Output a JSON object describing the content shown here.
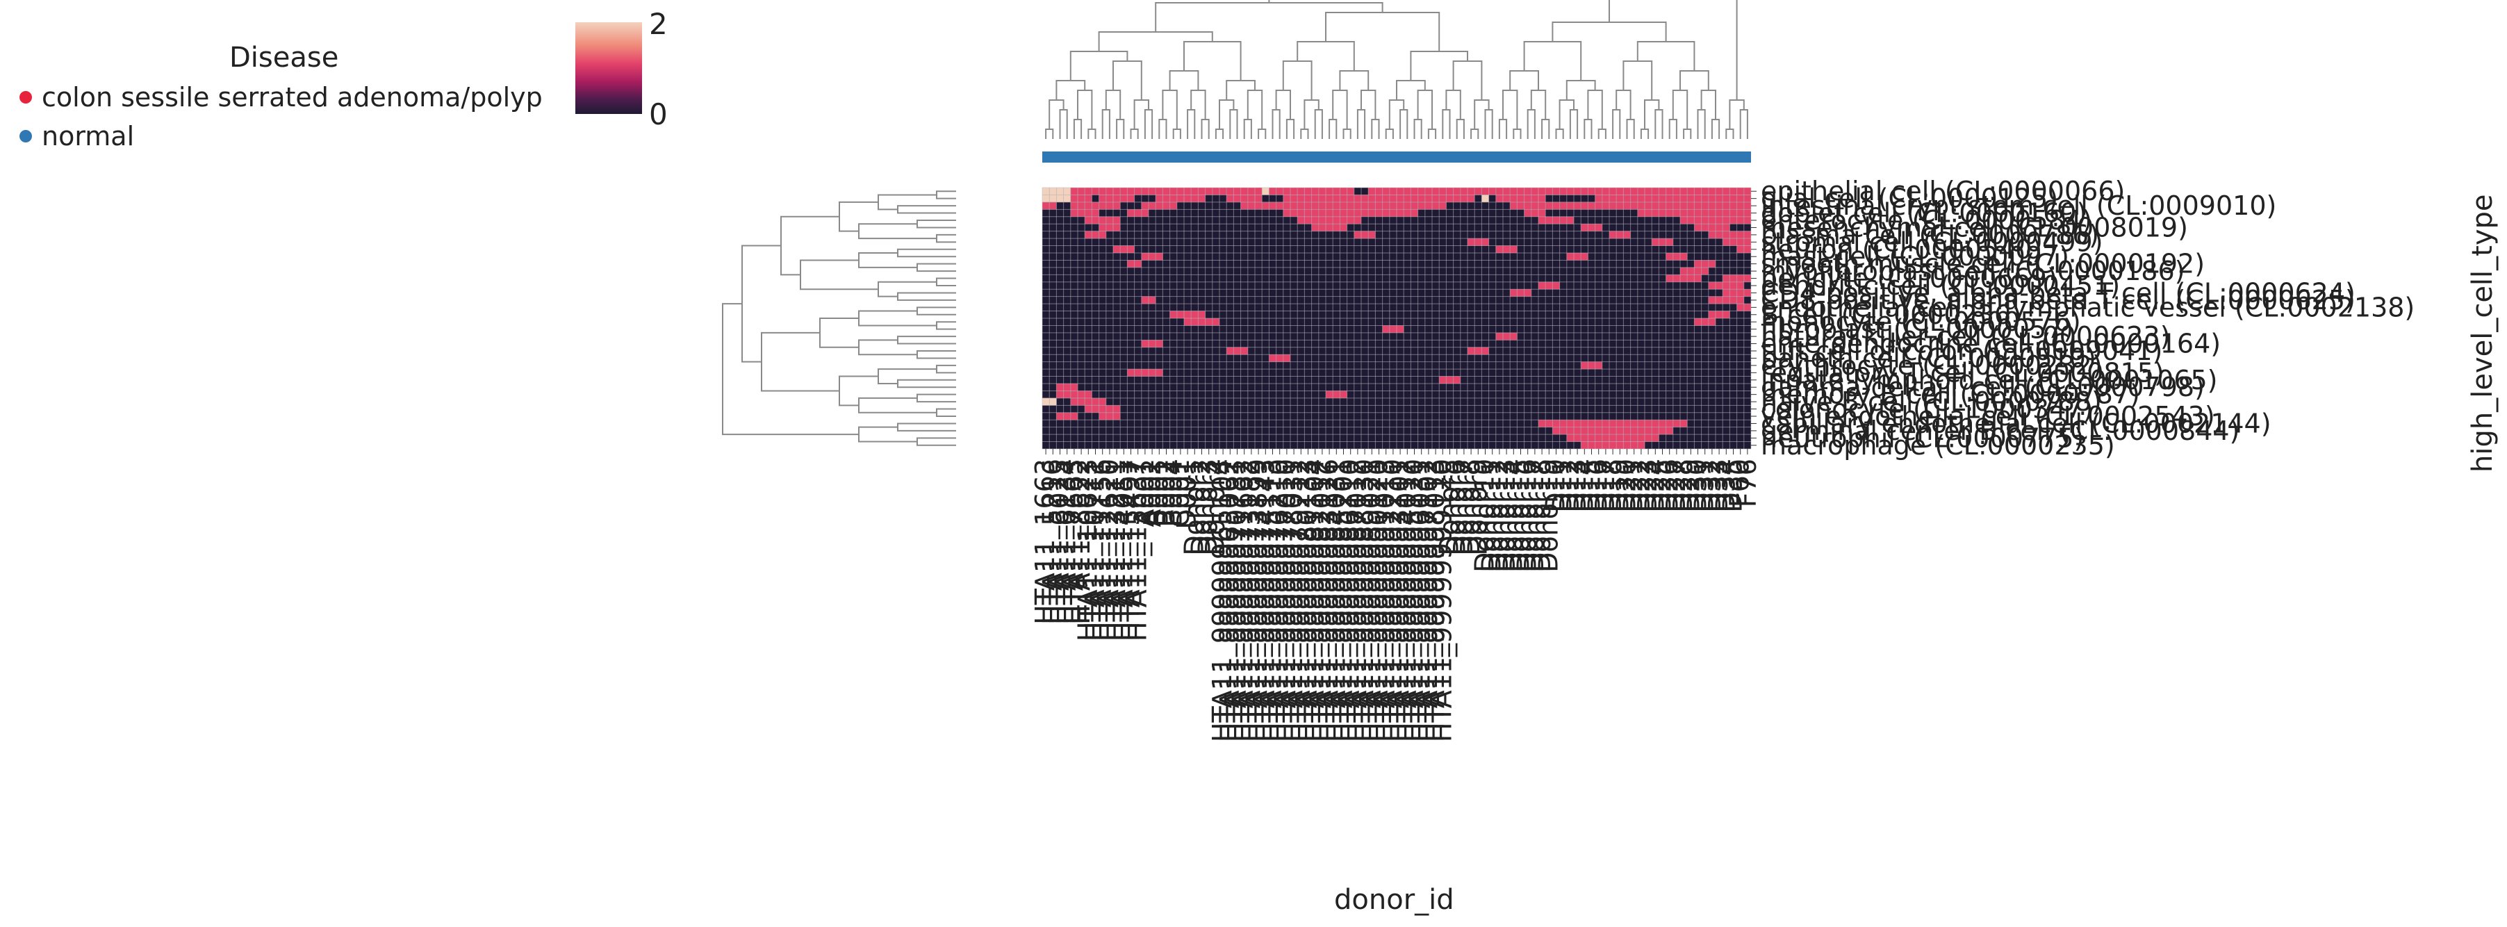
{
  "legend": {
    "title": "Disease",
    "items": [
      {
        "label": "colon sessile serrated adenoma/polyp",
        "color": "#e8243c"
      },
      {
        "label": "normal",
        "color": "#2f78b4"
      }
    ]
  },
  "colorbar": {
    "min_label": "0",
    "max_label": "2",
    "min": 0,
    "max": 2
  },
  "colors": {
    "low": "#1f1a33",
    "mid": "#e4436a",
    "high": "#f3d2bd",
    "grid": "#b9b9c3",
    "annotation_bar": "#2f78b4",
    "dendrogram": "#8a8a8a"
  },
  "chart_data": {
    "type": "heatmap",
    "title": "",
    "xlabel": "donor_id",
    "ylabel": "high_level_cell_type",
    "value_range": [
      0,
      2
    ],
    "column_annotation": "normal",
    "rows": [
      "epithelial cell (CL:0000066)",
      "glial cell (CL:0000125)",
      "intestinal crypt stem cell (CL:0009010)",
      "goblet cell (CL:0000160)",
      "enterocyte (CL:0000584)",
      "mesenchymal cell (CL:0008019)",
      "plasma cell (CL:0000786)",
      "stromal cell (CL:0000499)",
      "neuron (CL:0000540)",
      "mast cell (CL:0000097)",
      "smooth muscle cell (CL:0000192)",
      "myofibroblast cell (CL:0000186)",
      "pericyte (CL:0000669)",
      "dendritic cell (CL:0000451)",
      "CD4-positive, alpha-beta T cell (CL:0000624)",
      "CD8-positive, alpha-beta T cell (CL:0000625)",
      "endothelial cell of lymphatic vessel (CL:0002138)",
      "B cell (CL:0000236)",
      "monocyte (CL:0000576)",
      "fibroblast (CL:0000057)",
      "natural killer cell (CL:0000623)",
      "enteroendocrine cell (CL:0000164)",
      "tuft cell of colon (CL:0009041)",
      "paneth cell (CL:0000510)",
      "erythrocyte (CL:0000232)",
      "regulatory T cell (CL:0000815)",
      "innate lymphoid cell (CL:0001065)",
      "gamma-delta T cell (CL:0000798)",
      "memory B cell (CL:0000787)",
      "naive B cell (CL:0000788)",
      "colonocyte (CL:1000347)",
      "vein endothelial cell (CL:0002543)",
      "capillary endothelial cell (CL:0002144)",
      "germinal center B cell (CL:0000844)",
      "neutrophil (CL:0000775)",
      "macrophage (CL:0000235)"
    ],
    "columns": [
      "HTA11_1663",
      "HTA11_5216",
      "HTA11_6025",
      "HTA11_6134",
      "HTA11_7663",
      "HTA11_8622",
      "HTA11_10623",
      "HTA11_10711",
      "HTA11_11156",
      "HTA11_12620",
      "HTA11_13211",
      "HTA11_14051",
      "HTA11_15497",
      "HTA11_15637",
      "A001",
      "A002",
      "B001",
      "B002",
      "B004",
      "C001",
      "D001",
      "Donor1",
      "Donor2",
      "Donor3",
      "Donor4",
      "HTA11_99999965104",
      "HTA11_99999965062",
      "HTA11_99999970781",
      "HTA11_99999971662",
      "HTA11_99999973182",
      "HTA11_99999973899",
      "HTA11_99999974143",
      "HTA11_99999975113",
      "HTA11_99999976210",
      "HTA11_99999977010",
      "HTA11_99999978031",
      "HTA11_99999979212",
      "HTA11_99999980133",
      "HTA11_99999981104",
      "HTA11_99999982012",
      "HTA11_99999983126",
      "HTA11_99999984031",
      "HTA11_99999985201",
      "HTA11_99999986110",
      "HTA11_99999987012",
      "HTA11_99999988130",
      "HTA11_99999989021",
      "HTA11_99999990120",
      "HTA11_99999991013",
      "HTA11_99999992210",
      "HTA11_99999993101",
      "HTA11_99999994012",
      "HTA11_99999995120",
      "HTA11_99999996031",
      "HTA11_99999997102",
      "HTA11_99999998013",
      "HTA11_99999999120",
      "Donor5",
      "Donor6",
      "Donor7",
      "Donor8",
      "Donor9",
      "Donor10",
      "Donor11",
      "Donor12",
      "Donor13",
      "Donor14",
      "Donor15",
      "Donor16",
      "Donor17",
      "Donor18",
      "Donor19",
      "D10",
      "D11",
      "D12",
      "D13",
      "D14",
      "D15",
      "D16",
      "D17",
      "D18",
      "D19",
      "D20",
      "D21",
      "D22",
      "D23",
      "D24",
      "D25",
      "D26",
      "D27",
      "D28",
      "D29",
      "D30",
      "D31",
      "D32",
      "D33",
      "D34",
      "D35",
      "F60",
      "F76"
    ],
    "values_encoding": "per-row run-length list of [start_column, end_column, value]; cells not listed are 0",
    "runs": [
      [
        [
          0,
          3,
          2
        ],
        [
          4,
          30,
          1
        ],
        [
          31,
          31,
          2
        ],
        [
          32,
          43,
          1
        ],
        [
          44,
          45,
          0
        ],
        [
          46,
          63,
          1
        ],
        [
          64,
          74,
          1
        ],
        [
          75,
          99,
          1
        ]
      ],
      [
        [
          0,
          3,
          2
        ],
        [
          4,
          6,
          1
        ],
        [
          8,
          12,
          1
        ],
        [
          16,
          22,
          1
        ],
        [
          26,
          30,
          1
        ],
        [
          34,
          60,
          1
        ],
        [
          62,
          62,
          2
        ],
        [
          64,
          70,
          1
        ],
        [
          78,
          99,
          1
        ]
      ],
      [
        [
          0,
          1,
          1
        ],
        [
          4,
          10,
          1
        ],
        [
          14,
          18,
          1
        ],
        [
          28,
          56,
          1
        ],
        [
          66,
          99,
          1
        ]
      ],
      [
        [
          4,
          7,
          1
        ],
        [
          12,
          14,
          1
        ],
        [
          34,
          52,
          1
        ],
        [
          68,
          70,
          1
        ],
        [
          84,
          99,
          1
        ]
      ],
      [
        [
          6,
          10,
          1
        ],
        [
          36,
          44,
          1
        ],
        [
          70,
          74,
          1
        ],
        [
          90,
          99,
          1
        ]
      ],
      [
        [
          8,
          10,
          1
        ],
        [
          38,
          42,
          1
        ],
        [
          76,
          78,
          1
        ],
        [
          92,
          96,
          1
        ]
      ],
      [
        [
          6,
          8,
          1
        ],
        [
          44,
          46,
          1
        ],
        [
          80,
          82,
          1
        ],
        [
          94,
          99,
          1
        ]
      ],
      [
        [
          60,
          62,
          1
        ],
        [
          86,
          88,
          1
        ],
        [
          96,
          99,
          1
        ]
      ],
      [
        [
          10,
          12,
          1
        ],
        [
          64,
          66,
          1
        ],
        [
          98,
          99,
          1
        ]
      ],
      [
        [
          14,
          16,
          1
        ],
        [
          74,
          76,
          1
        ],
        [
          88,
          90,
          1
        ]
      ],
      [
        [
          12,
          13,
          1
        ],
        [
          92,
          94,
          1
        ]
      ],
      [
        [
          90,
          93,
          1
        ]
      ],
      [
        [
          88,
          92,
          1
        ],
        [
          96,
          99,
          1
        ]
      ],
      [
        [
          70,
          72,
          1
        ],
        [
          94,
          98,
          1
        ]
      ],
      [
        [
          66,
          68,
          1
        ],
        [
          96,
          99,
          1
        ]
      ],
      [
        [
          14,
          15,
          1
        ],
        [
          94,
          98,
          1
        ]
      ],
      [
        [
          98,
          99,
          1
        ]
      ],
      [
        [
          18,
          22,
          1
        ],
        [
          94,
          96,
          1
        ]
      ],
      [
        [
          20,
          24,
          1
        ],
        [
          92,
          94,
          1
        ]
      ],
      [
        [
          48,
          50,
          1
        ]
      ],
      [
        [
          64,
          66,
          1
        ]
      ],
      [
        [
          14,
          16,
          1
        ]
      ],
      [
        [
          26,
          28,
          1
        ],
        [
          60,
          62,
          1
        ]
      ],
      [
        [
          32,
          34,
          1
        ]
      ],
      [
        [
          76,
          78,
          1
        ]
      ],
      [
        [
          12,
          16,
          1
        ]
      ],
      [
        [
          56,
          58,
          1
        ]
      ],
      [
        [
          2,
          4,
          1
        ]
      ],
      [
        [
          2,
          6,
          1
        ],
        [
          40,
          42,
          1
        ]
      ],
      [
        [
          0,
          1,
          2
        ],
        [
          4,
          8,
          1
        ]
      ],
      [
        [
          6,
          10,
          1
        ]
      ],
      [
        [
          2,
          4,
          1
        ],
        [
          8,
          10,
          1
        ]
      ],
      [
        [
          70,
          90,
          1
        ]
      ],
      [
        [
          72,
          88,
          1
        ]
      ],
      [
        [
          74,
          86,
          1
        ]
      ],
      [
        [
          76,
          84,
          1
        ]
      ]
    ]
  }
}
